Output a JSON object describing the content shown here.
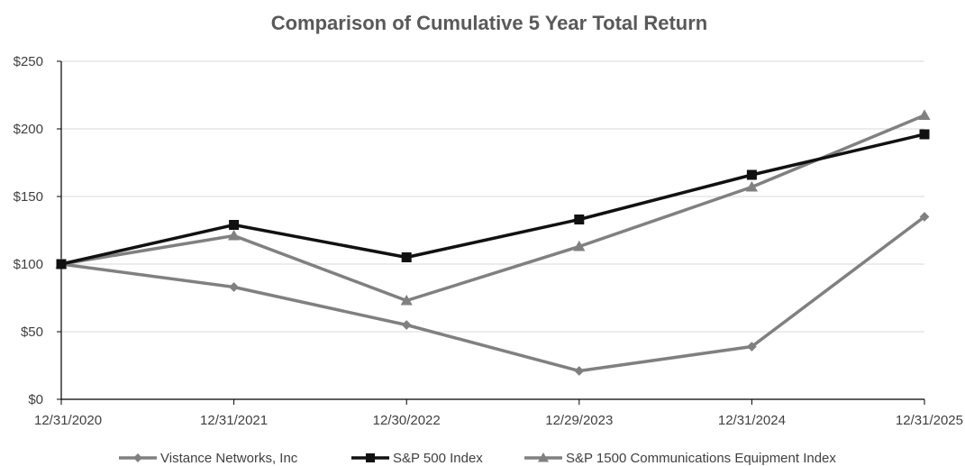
{
  "chart_data": {
    "type": "line",
    "title": "Comparison of Cumulative 5 Year Total Return",
    "xlabel": "",
    "ylabel": "",
    "x": [
      "12/31/2020",
      "12/31/2021",
      "12/30/2022",
      "12/29/2023",
      "12/31/2024",
      "12/31/2025"
    ],
    "ylim": [
      0,
      250
    ],
    "yticks": [
      0,
      50,
      100,
      150,
      200,
      250
    ],
    "ytick_labels": [
      "$0",
      "$50",
      "$100",
      "$150",
      "$200",
      "$250"
    ],
    "grid": "horizontal",
    "legend_position": "bottom",
    "series": [
      {
        "name": "Vistance Networks, Inc",
        "values": [
          100,
          83,
          55,
          21,
          39,
          135
        ],
        "color": "#808080",
        "marker": "diamond"
      },
      {
        "name": "S&P 500 Index",
        "values": [
          100,
          129,
          105,
          133,
          166,
          196
        ],
        "color": "#111111",
        "marker": "square"
      },
      {
        "name": "S&P 1500 Communications Equipment Index",
        "values": [
          100,
          121,
          73,
          113,
          157,
          210
        ],
        "color": "#808080",
        "marker": "triangle"
      }
    ]
  }
}
